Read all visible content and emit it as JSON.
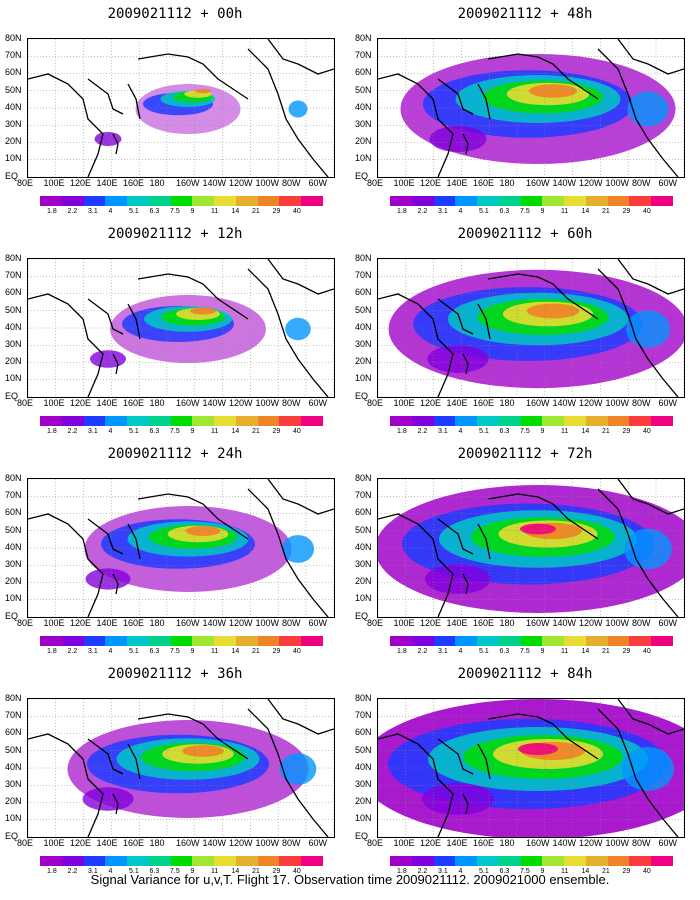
{
  "panels": [
    {
      "title": "2009021112 + 00h",
      "intensity": 0.25
    },
    {
      "title": "2009021112 + 48h",
      "intensity": 0.75
    },
    {
      "title": "2009021112 + 12h",
      "intensity": 0.4
    },
    {
      "title": "2009021112 + 60h",
      "intensity": 0.82
    },
    {
      "title": "2009021112 + 24h",
      "intensity": 0.55
    },
    {
      "title": "2009021112 + 72h",
      "intensity": 0.9
    },
    {
      "title": "2009021112 + 36h",
      "intensity": 0.65
    },
    {
      "title": "2009021112 + 84h",
      "intensity": 1.0
    }
  ],
  "lat_labels": [
    "80N",
    "70N",
    "60N",
    "50N",
    "40N",
    "30N",
    "20N",
    "10N",
    "EQ"
  ],
  "lon_labels": [
    "80E",
    "100E",
    "120E",
    "140E",
    "160E",
    "180",
    "160W",
    "140W",
    "120W",
    "100W",
    "80W",
    "60W"
  ],
  "colorbar": {
    "labels": [
      "1.8",
      "2.2",
      "3.1",
      "4",
      "5.1",
      "6.3",
      "7.5",
      "9",
      "11",
      "14",
      "21",
      "29",
      "40"
    ],
    "colors": [
      "#a000c8",
      "#8200dc",
      "#1e3cff",
      "#0096ff",
      "#00c8c8",
      "#00d28c",
      "#00dc00",
      "#a0e632",
      "#e6dc32",
      "#e6af2d",
      "#f08228",
      "#fa3c3c",
      "#f00082"
    ]
  },
  "footer": "Signal Variance for u,v,T. Flight 17. Observation time 2009021112. 2009021000 ensemble."
}
